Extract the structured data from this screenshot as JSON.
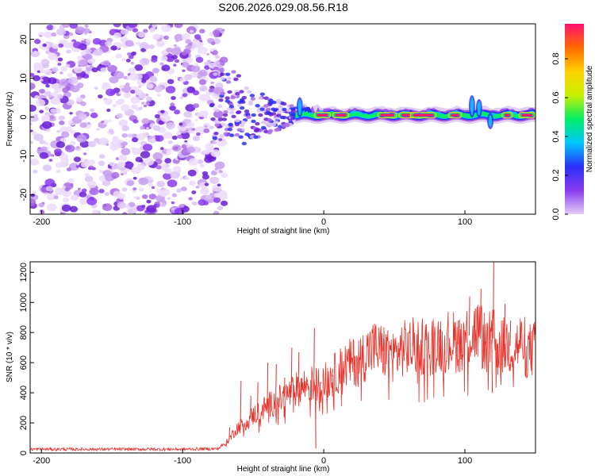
{
  "title": "S206.2026.029.08.56.R18",
  "chart_data": [
    {
      "type": "heatmap",
      "xlabel": "Height of straight line (km)",
      "ylabel": "Frequency (Hz)",
      "xlim": [
        -208,
        150
      ],
      "ylim": [
        -25,
        24
      ],
      "xticks": [
        -200,
        -100,
        0,
        100
      ],
      "yticks": [
        -20,
        -10,
        0,
        10,
        20
      ],
      "colorbar": {
        "label": "Normalized spectral amplitude",
        "range": [
          0.0,
          0.98
        ],
        "ticks": [
          0.0,
          0.2,
          0.4,
          0.6,
          0.8
        ],
        "colors": [
          "#e2cdf6",
          "#8a3bf0",
          "#2a30f5",
          "#00c8ff",
          "#00ee66",
          "#c8f000",
          "#ffd000",
          "#ff6a00",
          "#ff1070"
        ]
      },
      "features": {
        "noise_region_x": [
          -208,
          -80
        ],
        "transition_x": [
          -80,
          -20
        ],
        "line_frequency_hz": 0.5,
        "line_x": [
          -20,
          150
        ],
        "peak_amplitude": 0.95
      }
    },
    {
      "type": "line",
      "xlabel": "Height of straight line (km)",
      "ylabel": "SNR (10 * v/v)",
      "xlim": [
        -208,
        150
      ],
      "ylim": [
        0,
        1270
      ],
      "xticks": [
        -200,
        -100,
        0,
        100
      ],
      "yticks": [
        0,
        200,
        400,
        600,
        800,
        1000,
        1200
      ],
      "series": [
        {
          "name": "SNR",
          "color": "#e8322a",
          "x": [
            -208,
            -150,
            -100,
            -75,
            -68,
            -62,
            -55,
            -50,
            -45,
            -40,
            -35,
            -30,
            -25,
            -20,
            -15,
            -10,
            -5,
            0,
            5,
            10,
            15,
            20,
            25,
            30,
            35,
            40,
            45,
            50,
            55,
            60,
            65,
            70,
            75,
            80,
            85,
            90,
            95,
            100,
            105,
            110,
            115,
            120,
            125,
            130,
            135,
            140,
            145,
            150
          ],
          "y": [
            25,
            25,
            25,
            28,
            80,
            160,
            210,
            250,
            280,
            310,
            340,
            360,
            390,
            420,
            440,
            460,
            450,
            470,
            500,
            540,
            580,
            600,
            620,
            660,
            700,
            680,
            670,
            650,
            690,
            700,
            710,
            720,
            700,
            740,
            730,
            760,
            720,
            780,
            780,
            820,
            720,
            760,
            700,
            720,
            700,
            740,
            680,
            690
          ],
          "spikes": [
            {
              "x": -67,
              "y": 170
            },
            {
              "x": -59,
              "y": 480
            },
            {
              "x": -52,
              "y": 380
            },
            {
              "x": -47,
              "y": 470
            },
            {
              "x": -40,
              "y": 600
            },
            {
              "x": -34,
              "y": 590
            },
            {
              "x": -28,
              "y": 500
            },
            {
              "x": -23,
              "y": 700
            },
            {
              "x": -18,
              "y": 670
            },
            {
              "x": -12,
              "y": 490
            },
            {
              "x": -7,
              "y": 830
            },
            {
              "x": -6,
              "y": 30
            },
            {
              "x": -2,
              "y": 470
            },
            {
              "x": 6,
              "y": 560
            },
            {
              "x": 22,
              "y": 600
            },
            {
              "x": 42,
              "y": 760
            },
            {
              "x": 63,
              "y": 850
            },
            {
              "x": 82,
              "y": 820
            },
            {
              "x": 95,
              "y": 880
            },
            {
              "x": 103,
              "y": 1040
            },
            {
              "x": 107,
              "y": 960
            },
            {
              "x": 111,
              "y": 1090
            },
            {
              "x": 114,
              "y": 720
            },
            {
              "x": 119,
              "y": 400
            },
            {
              "x": 120,
              "y": 1270
            },
            {
              "x": 123,
              "y": 520
            },
            {
              "x": 128,
              "y": 990
            },
            {
              "x": 132,
              "y": 880
            }
          ]
        }
      ]
    }
  ]
}
